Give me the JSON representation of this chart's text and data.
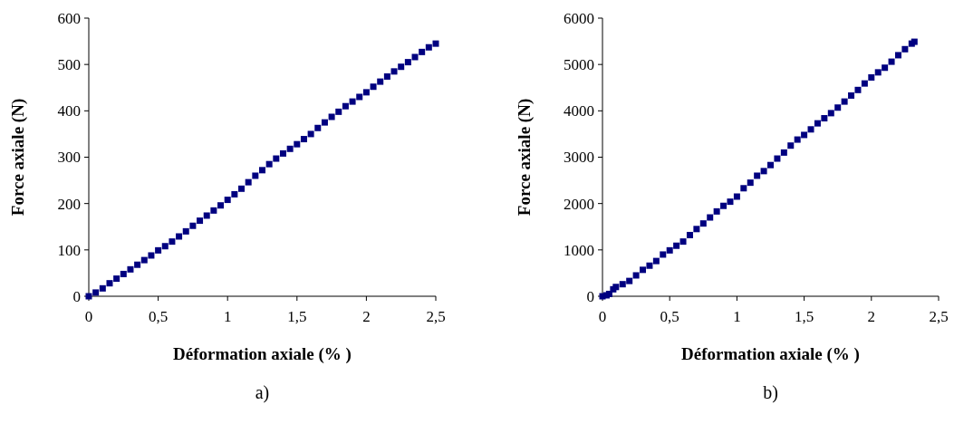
{
  "chart_data": [
    {
      "type": "scatter",
      "xlabel": "Déformation axiale (% )",
      "ylabel": "Force axiale (N)",
      "annotations": [
        "a)"
      ],
      "xlim": [
        0,
        2.5
      ],
      "ylim": [
        0,
        600
      ],
      "xticks": [
        0,
        {
          "value": 0.5,
          "label": "0,5"
        },
        1,
        {
          "value": 1.5,
          "label": "1,5"
        },
        2,
        {
          "value": 2.5,
          "label": "2,5"
        }
      ],
      "yticks": [
        0,
        100,
        200,
        300,
        400,
        500,
        600
      ],
      "marker": "square",
      "series": [
        {
          "color": "#000080",
          "x": [
            0,
            0.05,
            0.1,
            0.15,
            0.2,
            0.25,
            0.3,
            0.35,
            0.4,
            0.45,
            0.5,
            0.55,
            0.6,
            0.65,
            0.7,
            0.75,
            0.8,
            0.85,
            0.9,
            0.95,
            1.0,
            1.05,
            1.1,
            1.15,
            1.2,
            1.25,
            1.3,
            1.35,
            1.4,
            1.45,
            1.5,
            1.55,
            1.6,
            1.65,
            1.7,
            1.75,
            1.8,
            1.85,
            1.9,
            1.95,
            2.0,
            2.05,
            2.1,
            2.15,
            2.2,
            2.25,
            2.3,
            2.35,
            2.4,
            2.45,
            2.5
          ],
          "values": [
            0,
            8,
            17,
            28,
            38,
            48,
            58,
            68,
            78,
            88,
            99,
            108,
            118,
            129,
            140,
            152,
            163,
            174,
            185,
            196,
            208,
            220,
            232,
            246,
            260,
            272,
            285,
            297,
            308,
            318,
            328,
            339,
            350,
            363,
            375,
            387,
            398,
            410,
            420,
            430,
            440,
            452,
            463,
            474,
            485,
            495,
            505,
            516,
            527,
            537,
            545
          ]
        }
      ]
    },
    {
      "type": "scatter",
      "xlabel": "Déformation axiale (% )",
      "ylabel": "Force axiale (N)",
      "annotations": [
        "b)"
      ],
      "xlim": [
        0,
        2.5
      ],
      "ylim": [
        0,
        6000
      ],
      "xticks": [
        0,
        {
          "value": 0.5,
          "label": "0,5"
        },
        1,
        {
          "value": 1.5,
          "label": "1,5"
        },
        2,
        {
          "value": 2.5,
          "label": "2,5"
        }
      ],
      "yticks": [
        0,
        1000,
        2000,
        3000,
        4000,
        5000,
        6000
      ],
      "marker": "square",
      "series": [
        {
          "color": "#000080",
          "x": [
            0,
            0.03,
            0.05,
            0.08,
            0.1,
            0.15,
            0.2,
            0.25,
            0.3,
            0.35,
            0.4,
            0.45,
            0.5,
            0.55,
            0.6,
            0.65,
            0.7,
            0.75,
            0.8,
            0.85,
            0.9,
            0.95,
            1.0,
            1.05,
            1.1,
            1.15,
            1.2,
            1.25,
            1.3,
            1.35,
            1.4,
            1.45,
            1.5,
            1.55,
            1.6,
            1.65,
            1.7,
            1.75,
            1.8,
            1.85,
            1.9,
            1.95,
            2.0,
            2.05,
            2.1,
            2.15,
            2.2,
            2.25,
            2.3,
            2.32
          ],
          "values": [
            0,
            20,
            50,
            150,
            200,
            260,
            330,
            450,
            570,
            660,
            760,
            900,
            990,
            1090,
            1180,
            1320,
            1450,
            1570,
            1700,
            1830,
            1950,
            2040,
            2150,
            2330,
            2450,
            2600,
            2700,
            2830,
            2970,
            3100,
            3250,
            3380,
            3480,
            3600,
            3730,
            3840,
            3950,
            4070,
            4200,
            4330,
            4450,
            4590,
            4720,
            4830,
            4930,
            5060,
            5200,
            5330,
            5450,
            5490
          ]
        }
      ]
    }
  ]
}
